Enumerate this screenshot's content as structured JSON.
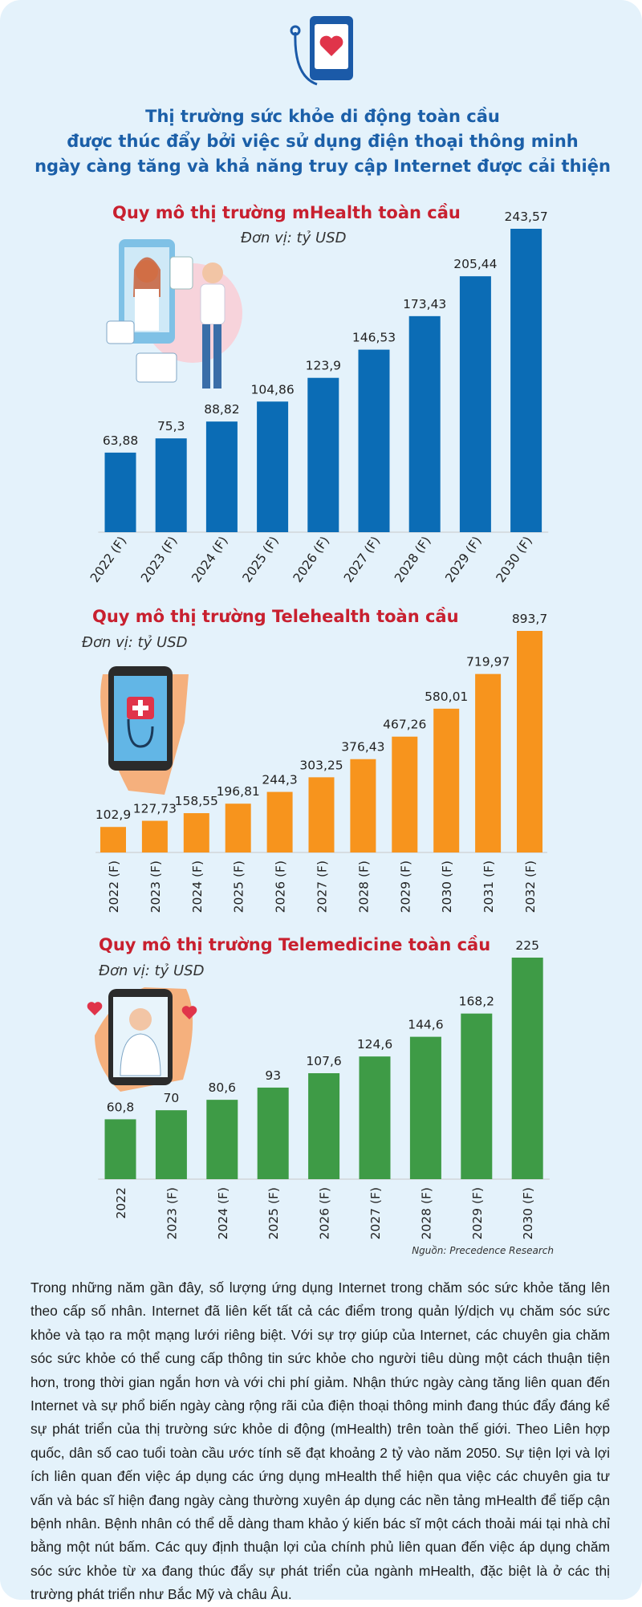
{
  "header": {
    "title": [
      "Thị trường sức khỏe di động toàn cầu",
      "được thúc đẩy bởi việc sử dụng điện thoại thông minh",
      "ngày càng tăng và khả năng truy cập Internet được cải thiện"
    ]
  },
  "chart_data": [
    {
      "type": "bar",
      "title": "Quy mô thị trường mHealth toàn cầu",
      "subtitle": "Đơn vị: tỷ USD",
      "color": "#0b6cb5",
      "categories": [
        "2022 (F)",
        "2023 (F)",
        "2024 (F)",
        "2025 (F)",
        "2026 (F)",
        "2027 (F)",
        "2028 (F)",
        "2029 (F)",
        "2030 (F)"
      ],
      "values": [
        63.88,
        75.3,
        88.82,
        104.86,
        123.9,
        146.53,
        173.43,
        205.44,
        243.57
      ],
      "value_labels": [
        "63,88",
        "75,3",
        "88,82",
        "104,86",
        "123,9",
        "146,53",
        "173,43",
        "205,44",
        "243,57"
      ]
    },
    {
      "type": "bar",
      "title": "Quy mô thị trường Telehealth toàn cầu",
      "subtitle": "Đơn vị: tỷ USD",
      "color": "#f7941d",
      "categories": [
        "2022 (F)",
        "2023 (F)",
        "2024 (F)",
        "2025 (F)",
        "2026 (F)",
        "2027 (F)",
        "2028 (F)",
        "2029 (F)",
        "2030 (F)",
        "2031 (F)",
        "2032 (F)"
      ],
      "values": [
        102.9,
        127.73,
        158.55,
        196.81,
        244.3,
        303.25,
        376.43,
        467.26,
        580.01,
        719.97,
        893.7
      ],
      "value_labels": [
        "102,9",
        "127,73",
        "158,55",
        "196,81",
        "244,3",
        "303,25",
        "376,43",
        "467,26",
        "580,01",
        "719,97",
        "893,7"
      ]
    },
    {
      "type": "bar",
      "title": "Quy mô thị trường Telemedicine toàn cầu",
      "subtitle": "Đơn vị: tỷ USD",
      "color": "#3e9b46",
      "categories": [
        "2022",
        "2023 (F)",
        "2024 (F)",
        "2025 (F)",
        "2026 (F)",
        "2027 (F)",
        "2028 (F)",
        "2029 (F)",
        "2030 (F)"
      ],
      "values": [
        60.8,
        70,
        80.6,
        93,
        107.6,
        124.6,
        144.6,
        168.2,
        225
      ],
      "value_labels": [
        "60,8",
        "70",
        "80,6",
        "93",
        "107,6",
        "124,6",
        "144,6",
        "168,2",
        "225"
      ]
    }
  ],
  "source": "Nguồn: Precedence Research",
  "body": "Trong những năm gần đây, số lượng ứng dụng Internet trong chăm sóc sức khỏe tăng lên theo cấp số nhân. Internet đã liên kết tất cả các điểm trong quản lý/dịch vụ chăm sóc sức khỏe và tạo ra một mạng lưới riêng biệt. Với sự trợ giúp của Internet, các chuyên gia chăm sóc sức khỏe có thể cung cấp thông tin sức khỏe cho người tiêu dùng một cách thuận tiện hơn, trong thời gian ngắn hơn và với chi phí giảm. Nhận thức ngày càng tăng liên quan đến Internet và sự phổ biến ngày càng rộng rãi của điện thoại thông minh đang thúc đẩy đáng kể sự phát triển của thị trường sức khỏe di động (mHealth) trên toàn thế giới. Theo Liên hợp quốc, dân số cao tuổi toàn cầu ước tính sẽ đạt khoảng 2 tỷ vào năm 2050. Sự tiện lợi và lợi ích liên quan đến việc áp dụng các ứng dụng mHealth thể hiện qua việc các chuyên gia tư vấn và bác sĩ hiện đang ngày càng thường xuyên áp dụng các nền tảng mHealth để tiếp cận bệnh nhân. Bệnh nhân có thể dễ dàng tham khảo ý kiến bác sĩ một cách thoải mái tại nhà chỉ bằng một nút bấm. Các quy định thuận lợi của chính phủ liên quan đến việc áp dụng chăm sóc sức khỏe từ xa đang thúc đẩy sự phát triển của ngành mHealth, đặc biệt là ở các thị trường phát triển như Bắc Mỹ và châu Âu."
}
